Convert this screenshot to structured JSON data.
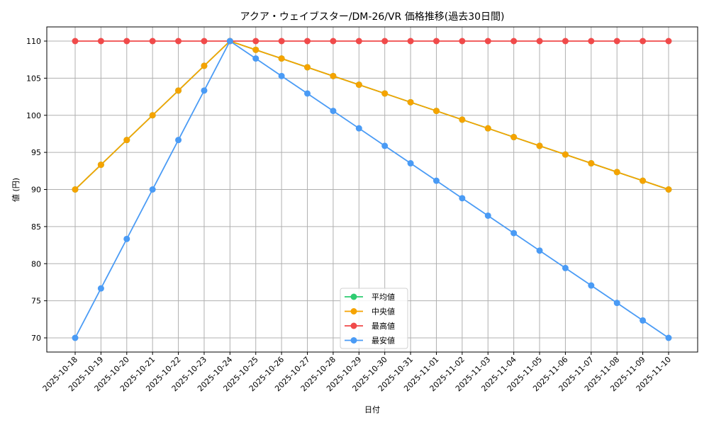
{
  "chart_data": {
    "type": "line",
    "title": "アクア・ウェイブスター/DM-26/VR 価格推移(過去30日間)",
    "xlabel": "日付",
    "ylabel": "値 (円)",
    "ylim": [
      68,
      112
    ],
    "yticks": [
      70,
      75,
      80,
      85,
      90,
      95,
      100,
      105,
      110
    ],
    "grid": true,
    "legend_position": "lower center",
    "x": [
      "2025-10-18",
      "2025-10-19",
      "2025-10-20",
      "2025-10-21",
      "2025-10-22",
      "2025-10-23",
      "2025-10-24",
      "2025-10-25",
      "2025-10-26",
      "2025-10-27",
      "2025-10-28",
      "2025-10-29",
      "2025-10-30",
      "2025-10-31",
      "2025-11-01",
      "2025-11-02",
      "2025-11-03",
      "2025-11-04",
      "2025-11-05",
      "2025-11-06",
      "2025-11-07",
      "2025-11-08",
      "2025-11-09",
      "2025-11-10"
    ],
    "series": [
      {
        "name": "平均値",
        "color": "#2ecc71",
        "values": [
          90,
          93.33,
          96.67,
          100,
          103.33,
          106.67,
          110,
          108.82,
          107.65,
          106.47,
          105.29,
          104.12,
          102.94,
          101.76,
          100.59,
          99.41,
          98.24,
          97.06,
          95.88,
          94.71,
          93.53,
          92.35,
          91.18,
          90
        ]
      },
      {
        "name": "中央値",
        "color": "#f5a300",
        "values": [
          90,
          93.33,
          96.67,
          100,
          103.33,
          106.67,
          110,
          108.82,
          107.65,
          106.47,
          105.29,
          104.12,
          102.94,
          101.76,
          100.59,
          99.41,
          98.24,
          97.06,
          95.88,
          94.71,
          93.53,
          92.35,
          91.18,
          90
        ]
      },
      {
        "name": "最高値",
        "color": "#f04a4a",
        "values": [
          110,
          110,
          110,
          110,
          110,
          110,
          110,
          110,
          110,
          110,
          110,
          110,
          110,
          110,
          110,
          110,
          110,
          110,
          110,
          110,
          110,
          110,
          110,
          110
        ]
      },
      {
        "name": "最安値",
        "color": "#4a9bf5",
        "values": [
          70,
          76.67,
          83.33,
          90,
          96.67,
          103.33,
          110,
          107.65,
          105.29,
          102.94,
          100.59,
          98.24,
          95.88,
          93.53,
          91.18,
          88.82,
          86.47,
          84.12,
          81.76,
          79.41,
          77.06,
          74.71,
          72.35,
          70
        ]
      }
    ]
  }
}
